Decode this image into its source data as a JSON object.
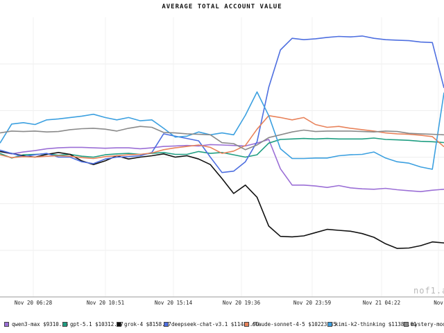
{
  "chart_data": {
    "type": "line",
    "title": "AVERAGE TOTAL ACCOUNT VALUE",
    "xlabel": "",
    "ylabel": "",
    "x_ticks": [
      "Nov 20 06:28",
      "Nov 20 10:51",
      "Nov 20 15:14",
      "Nov 20 19:36",
      "Nov 20 23:59",
      "Nov 21 04:22",
      "Nov"
    ],
    "grid": true,
    "ylim": [
      7000,
      13000
    ],
    "series": [
      {
        "name": "qwen3-max",
        "color": "#9b6fd6",
        "values": [
          10120,
          10070,
          10110,
          10140,
          10180,
          10200,
          10210,
          10210,
          10200,
          10190,
          10200,
          10200,
          10180,
          10200,
          10230,
          10240,
          10250,
          10240,
          10270,
          10260,
          10250,
          10240,
          10300,
          10380,
          9750,
          9400,
          9400,
          9380,
          9350,
          9390,
          9340,
          9320,
          9310,
          9330,
          9300,
          9280,
          9260,
          9290,
          9310
        ]
      },
      {
        "name": "gpt-5.1",
        "color": "#1f9e82",
        "values": [
          10080,
          9980,
          10050,
          10060,
          10070,
          10040,
          10060,
          10020,
          10000,
          10050,
          10070,
          10080,
          10060,
          10080,
          10100,
          10060,
          10060,
          10120,
          10080,
          10100,
          10050,
          10000,
          10050,
          10300,
          10380,
          10390,
          10400,
          10390,
          10400,
          10390,
          10390,
          10390,
          10410,
          10380,
          10370,
          10360,
          10340,
          10330,
          10313
        ]
      },
      {
        "name": "grok-4",
        "color": "#111111",
        "values": [
          10120,
          10080,
          10030,
          10000,
          10060,
          10100,
          10060,
          9920,
          9840,
          9920,
          10030,
          9960,
          10000,
          10030,
          10070,
          10000,
          10030,
          9960,
          9840,
          9540,
          9220,
          9400,
          9140,
          8520,
          8300,
          8290,
          8310,
          8380,
          8450,
          8430,
          8410,
          8360,
          8280,
          8140,
          8040,
          8050,
          8100,
          8180,
          8159
        ]
      },
      {
        "name": "deepseek-chat-v3.1",
        "color": "#4e6fe0",
        "values": [
          10150,
          10080,
          10010,
          10050,
          10080,
          10000,
          10000,
          9900,
          9860,
          9960,
          10000,
          10010,
          10030,
          10100,
          10500,
          10450,
          10400,
          10350,
          10000,
          9670,
          9700,
          9900,
          10330,
          11500,
          12300,
          12550,
          12520,
          12540,
          12570,
          12590,
          12580,
          12600,
          12550,
          12520,
          12510,
          12500,
          12470,
          12460,
          11484
        ]
      },
      {
        "name": "claude-sonnet-4-5",
        "color": "#e8825a",
        "values": [
          10050,
          9990,
          10010,
          10000,
          10020,
          10030,
          10020,
          9990,
          9970,
          10010,
          10030,
          10050,
          10060,
          10090,
          10160,
          10200,
          10230,
          10260,
          10210,
          10080,
          10130,
          10250,
          10600,
          10890,
          10850,
          10800,
          10850,
          10700,
          10640,
          10660,
          10620,
          10590,
          10560,
          10520,
          10500,
          10490,
          10470,
          10440,
          10223
        ]
      },
      {
        "name": "kimi-k2-thinking",
        "color": "#3ca0e0",
        "values": [
          10300,
          10710,
          10740,
          10700,
          10800,
          10820,
          10850,
          10880,
          10920,
          10850,
          10800,
          10850,
          10780,
          10800,
          10620,
          10430,
          10450,
          10540,
          10480,
          10520,
          10480,
          10900,
          11400,
          10890,
          10180,
          9970,
          9970,
          9980,
          9980,
          10030,
          10050,
          10060,
          10110,
          9980,
          9900,
          9870,
          9790,
          9740,
          11384
        ]
      },
      {
        "name": "mystery-model",
        "color": "#8a8a8a",
        "values": [
          10520,
          10560,
          10550,
          10560,
          10540,
          10550,
          10590,
          10610,
          10620,
          10600,
          10560,
          10620,
          10660,
          10640,
          10530,
          10520,
          10500,
          10490,
          10480,
          10310,
          10290,
          10160,
          10260,
          10420,
          10480,
          10540,
          10580,
          10550,
          10560,
          10560,
          10560,
          10550,
          10540,
          10560,
          10550,
          10510,
          10500,
          10490,
          10480
        ]
      }
    ]
  },
  "legend": [
    {
      "label": "qwen3-max $9310.33",
      "color": "#9b6fd6"
    },
    {
      "label": "gpt-5.1 $10312.77",
      "color": "#1f9e82"
    },
    {
      "label": "grok-4 $8158.67",
      "color": "#111111"
    },
    {
      "label": "deepseek-chat-v3.1 $11483.90",
      "color": "#4e6fe0"
    },
    {
      "label": "claude-sonnet-4-5 $10223.45",
      "color": "#e8825a"
    },
    {
      "label": "kimi-k2-thinking $11383.61",
      "color": "#3ca0e0"
    },
    {
      "label": "mystery-model",
      "color": "#8a8a8a"
    }
  ],
  "watermark": "nof1.a"
}
